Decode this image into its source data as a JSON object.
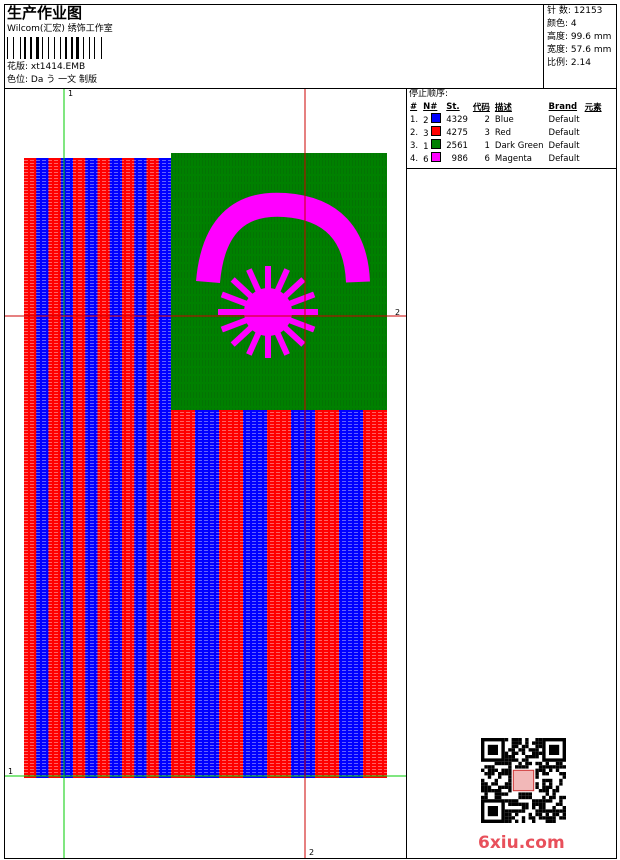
{
  "header": {
    "title": "生产作业图",
    "company": "Wilcom(汇宏) 绣饰工作室",
    "design_file": {
      "label": "花版:",
      "value": "xt1414.EMB"
    },
    "color_scheme": {
      "label": "色位:",
      "value": "Da う 一文 制版"
    }
  },
  "info": [
    {
      "label": "针 数:",
      "value": "12153"
    },
    {
      "label": "颜色:",
      "value": "4"
    },
    {
      "label": "高度:",
      "value": "99.6 mm"
    },
    {
      "label": "宽度:",
      "value": "57.6 mm"
    },
    {
      "label": "比例:",
      "value": "2.14"
    }
  ],
  "stop_sequence": {
    "title": "停止顺序:",
    "columns": [
      "#",
      "N#",
      "St.",
      "代码",
      "描述",
      "Brand",
      "元素"
    ],
    "rows": [
      {
        "index": "1.",
        "needle": "2",
        "color": "#0000ff",
        "stitches": "4329",
        "code": "2",
        "description": "Blue",
        "brand": "Default"
      },
      {
        "index": "2.",
        "needle": "3",
        "color": "#ff0000",
        "stitches": "4275",
        "code": "3",
        "description": "Red",
        "brand": "Default"
      },
      {
        "index": "3.",
        "needle": "1",
        "color": "#008000",
        "stitches": "2561",
        "code": "1",
        "description": "Dark Green",
        "brand": "Default"
      },
      {
        "index": "4.",
        "needle": "6",
        "color": "#ff00ff",
        "stitches": "986",
        "code": "6",
        "description": "Magenta",
        "brand": "Default"
      }
    ]
  },
  "canvas": {
    "markers": {
      "top": "1",
      "left": "1",
      "right": "2",
      "bottom": "2"
    }
  },
  "watermark": "6xiu.com"
}
